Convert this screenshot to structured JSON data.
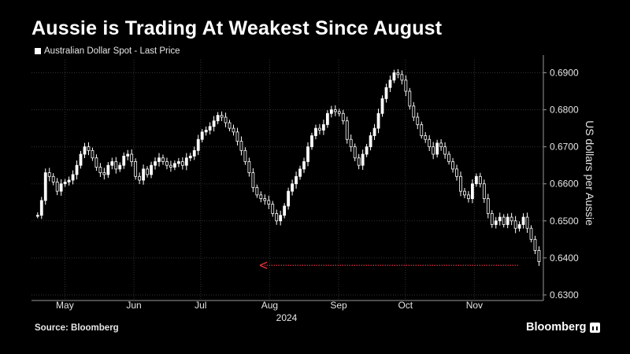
{
  "title": "Aussie is Trading At Weakest Since August",
  "legend_label": "Australian Dollar Spot - Last Price",
  "source": "Source: Bloomberg",
  "brand": "Bloomberg",
  "colors": {
    "background": "#000000",
    "candle": "#ffffff",
    "grid": "#333333",
    "arrow": "#d9303b",
    "text": "#e6e6e6"
  },
  "chart_data": {
    "type": "candlestick",
    "title": "Aussie is Trading At Weakest Since August",
    "ylabel": "US dollars per Aussie",
    "xlabel": "2024",
    "ylim": [
      0.6285,
      0.6935
    ],
    "y_ticks": [
      "0.6300",
      "0.6400",
      "0.6500",
      "0.6600",
      "0.6700",
      "0.6800",
      "0.6900"
    ],
    "y_tick_values": [
      0.63,
      0.64,
      0.65,
      0.66,
      0.67,
      0.68,
      0.69
    ],
    "x_ticks": [
      "May",
      "Jun",
      "Jul",
      "Aug",
      "Sep",
      "Oct",
      "Nov"
    ],
    "x_tick_days": [
      15,
      46,
      76,
      107,
      138,
      168,
      199
    ],
    "year_label": "2024",
    "x_range_days": [
      0,
      230
    ],
    "grid": true,
    "series": [
      {
        "name": "Australian Dollar Spot - Last Price",
        "points": [
          [
            1,
            0.6515
          ],
          [
            2,
            0.6555
          ],
          [
            3,
            0.663
          ],
          [
            4,
            0.662
          ],
          [
            5,
            0.6605
          ],
          [
            6,
            0.658
          ],
          [
            7,
            0.66
          ],
          [
            8,
            0.6605
          ],
          [
            9,
            0.661
          ],
          [
            10,
            0.6625
          ],
          [
            11,
            0.665
          ],
          [
            12,
            0.668
          ],
          [
            13,
            0.67
          ],
          [
            14,
            0.669
          ],
          [
            15,
            0.667
          ],
          [
            16,
            0.6645
          ],
          [
            17,
            0.663
          ],
          [
            18,
            0.6625
          ],
          [
            19,
            0.665
          ],
          [
            20,
            0.666
          ],
          [
            21,
            0.664
          ],
          [
            22,
            0.665
          ],
          [
            23,
            0.6675
          ],
          [
            24,
            0.668
          ],
          [
            25,
            0.666
          ],
          [
            26,
            0.662
          ],
          [
            27,
            0.661
          ],
          [
            28,
            0.664
          ],
          [
            29,
            0.6625
          ],
          [
            30,
            0.665
          ],
          [
            31,
            0.666
          ],
          [
            32,
            0.667
          ],
          [
            33,
            0.666
          ],
          [
            34,
            0.665
          ],
          [
            35,
            0.6645
          ],
          [
            36,
            0.6655
          ],
          [
            37,
            0.666
          ],
          [
            38,
            0.665
          ],
          [
            39,
            0.667
          ],
          [
            40,
            0.6675
          ],
          [
            41,
            0.669
          ],
          [
            42,
            0.672
          ],
          [
            43,
            0.674
          ],
          [
            44,
            0.6745
          ],
          [
            45,
            0.6755
          ],
          [
            46,
            0.677
          ],
          [
            47,
            0.6785
          ],
          [
            48,
            0.678
          ],
          [
            49,
            0.6765
          ],
          [
            50,
            0.675
          ],
          [
            51,
            0.674
          ],
          [
            52,
            0.6715
          ],
          [
            53,
            0.669
          ],
          [
            54,
            0.666
          ],
          [
            55,
            0.663
          ],
          [
            56,
            0.659
          ],
          [
            57,
            0.657
          ],
          [
            58,
            0.656
          ],
          [
            59,
            0.6555
          ],
          [
            60,
            0.6545
          ],
          [
            61,
            0.652
          ],
          [
            62,
            0.65
          ],
          [
            63,
            0.6515
          ],
          [
            64,
            0.654
          ],
          [
            65,
            0.658
          ],
          [
            66,
            0.66
          ],
          [
            67,
            0.662
          ],
          [
            68,
            0.664
          ],
          [
            69,
            0.666
          ],
          [
            70,
            0.67
          ],
          [
            71,
            0.673
          ],
          [
            72,
            0.675
          ],
          [
            73,
            0.6745
          ],
          [
            74,
            0.676
          ],
          [
            75,
            0.679
          ],
          [
            76,
            0.68
          ],
          [
            77,
            0.6795
          ],
          [
            78,
            0.679
          ],
          [
            79,
            0.677
          ],
          [
            80,
            0.672
          ],
          [
            81,
            0.67
          ],
          [
            82,
            0.667
          ],
          [
            83,
            0.665
          ],
          [
            84,
            0.668
          ],
          [
            85,
            0.67
          ],
          [
            86,
            0.673
          ],
          [
            87,
            0.675
          ],
          [
            88,
            0.679
          ],
          [
            89,
            0.683
          ],
          [
            90,
            0.686
          ],
          [
            91,
            0.688
          ],
          [
            92,
            0.69
          ],
          [
            93,
            0.6895
          ],
          [
            94,
            0.688
          ],
          [
            95,
            0.685
          ],
          [
            96,
            0.681
          ],
          [
            97,
            0.678
          ],
          [
            98,
            0.676
          ],
          [
            99,
            0.673
          ],
          [
            100,
            0.672
          ],
          [
            101,
            0.67
          ],
          [
            102,
            0.668
          ],
          [
            103,
            0.671
          ],
          [
            104,
            0.67
          ],
          [
            105,
            0.668
          ],
          [
            106,
            0.666
          ],
          [
            107,
            0.664
          ],
          [
            108,
            0.662
          ],
          [
            109,
            0.658
          ],
          [
            110,
            0.657
          ],
          [
            111,
            0.656
          ],
          [
            112,
            0.66
          ],
          [
            113,
            0.662
          ],
          [
            114,
            0.66
          ],
          [
            115,
            0.656
          ],
          [
            116,
            0.652
          ],
          [
            117,
            0.649
          ],
          [
            118,
            0.65
          ],
          [
            119,
            0.651
          ],
          [
            120,
            0.649
          ],
          [
            121,
            0.651
          ],
          [
            122,
            0.65
          ],
          [
            123,
            0.648
          ],
          [
            124,
            0.649
          ],
          [
            125,
            0.651
          ],
          [
            126,
            0.648
          ],
          [
            127,
            0.645
          ],
          [
            128,
            0.642
          ],
          [
            129,
            0.639
          ]
        ]
      }
    ],
    "annotations": [
      {
        "type": "arrow",
        "description": "horizontal red dotted arrow pointing left from latest price back to August low",
        "y": 0.638,
        "x_from_day": 228,
        "x_to_day": 107
      }
    ]
  }
}
